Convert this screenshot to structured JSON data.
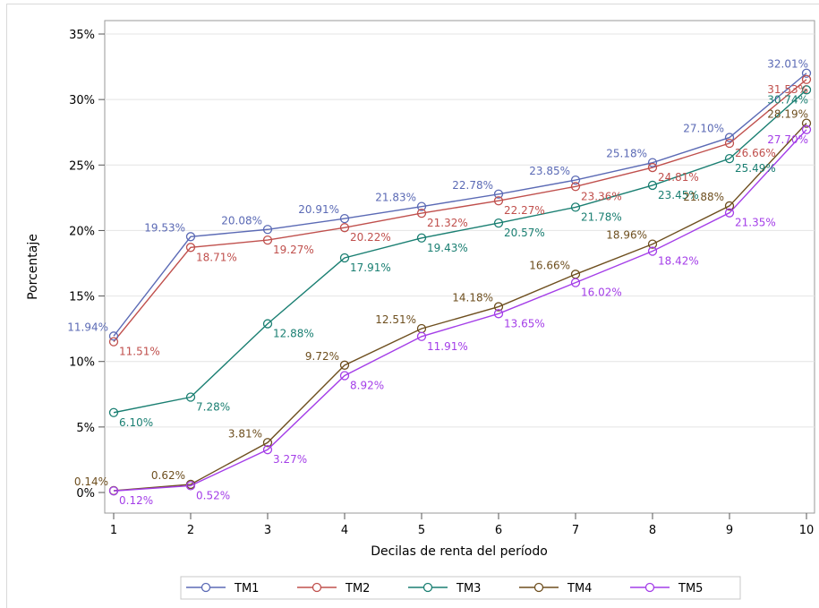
{
  "chart_data": {
    "type": "line",
    "xlabel": "Decilas de renta del período",
    "ylabel": "Porcentaje",
    "x": [
      1,
      2,
      3,
      4,
      5,
      6,
      7,
      8,
      9,
      10
    ],
    "x_tick_labels": [
      "1",
      "2",
      "3",
      "4",
      "5",
      "6",
      "7",
      "8",
      "9",
      "10"
    ],
    "ylim": [
      0,
      35
    ],
    "y_tick_labels": [
      "0%",
      "5%",
      "10%",
      "15%",
      "20%",
      "25%",
      "30%",
      "35%"
    ],
    "grid": "horizontal",
    "legend_position": "bottom",
    "series": [
      {
        "name": "TM1",
        "color": "#5b6ab5",
        "values": [
          11.94,
          19.53,
          20.08,
          20.91,
          21.83,
          22.78,
          23.85,
          25.18,
          27.1,
          32.01
        ],
        "labels": [
          "11.94%",
          "19.53%",
          "20.08%",
          "20.91%",
          "21.83%",
          "22.78%",
          "23.85%",
          "25.18%",
          "27.10%",
          "32.01%"
        ]
      },
      {
        "name": "TM2",
        "color": "#c0504d",
        "values": [
          11.51,
          18.71,
          19.27,
          20.22,
          21.32,
          22.27,
          23.36,
          24.81,
          26.66,
          31.53
        ],
        "labels": [
          "11.51%",
          "18.71%",
          "19.27%",
          "20.22%",
          "21.32%",
          "22.27%",
          "23.36%",
          "24.81%",
          "26.66%",
          "31.53%"
        ]
      },
      {
        "name": "TM3",
        "color": "#1a7f72",
        "values": [
          6.1,
          7.28,
          12.88,
          17.91,
          19.43,
          20.57,
          21.78,
          23.45,
          25.49,
          30.74
        ],
        "labels": [
          "6.10%",
          "7.28%",
          "12.88%",
          "17.91%",
          "19.43%",
          "20.57%",
          "21.78%",
          "23.45%",
          "25.49%",
          "30.74%"
        ]
      },
      {
        "name": "TM4",
        "color": "#6e4f1f",
        "values": [
          0.14,
          0.62,
          3.81,
          9.72,
          12.51,
          14.18,
          16.66,
          18.96,
          21.88,
          28.19
        ],
        "labels": [
          "0.14%",
          "0.62%",
          "3.81%",
          "9.72%",
          "12.51%",
          "14.18%",
          "16.66%",
          "18.96%",
          "21.88%",
          "28.19%"
        ]
      },
      {
        "name": "TM5",
        "color": "#a43ee8",
        "values": [
          0.12,
          0.52,
          3.27,
          8.92,
          11.91,
          13.65,
          16.02,
          18.42,
          21.35,
          27.7
        ],
        "labels": [
          "0.12%",
          "0.52%",
          "3.27%",
          "8.92%",
          "11.91%",
          "13.65%",
          "16.02%",
          "18.42%",
          "21.35%",
          "27.70%"
        ]
      }
    ]
  }
}
